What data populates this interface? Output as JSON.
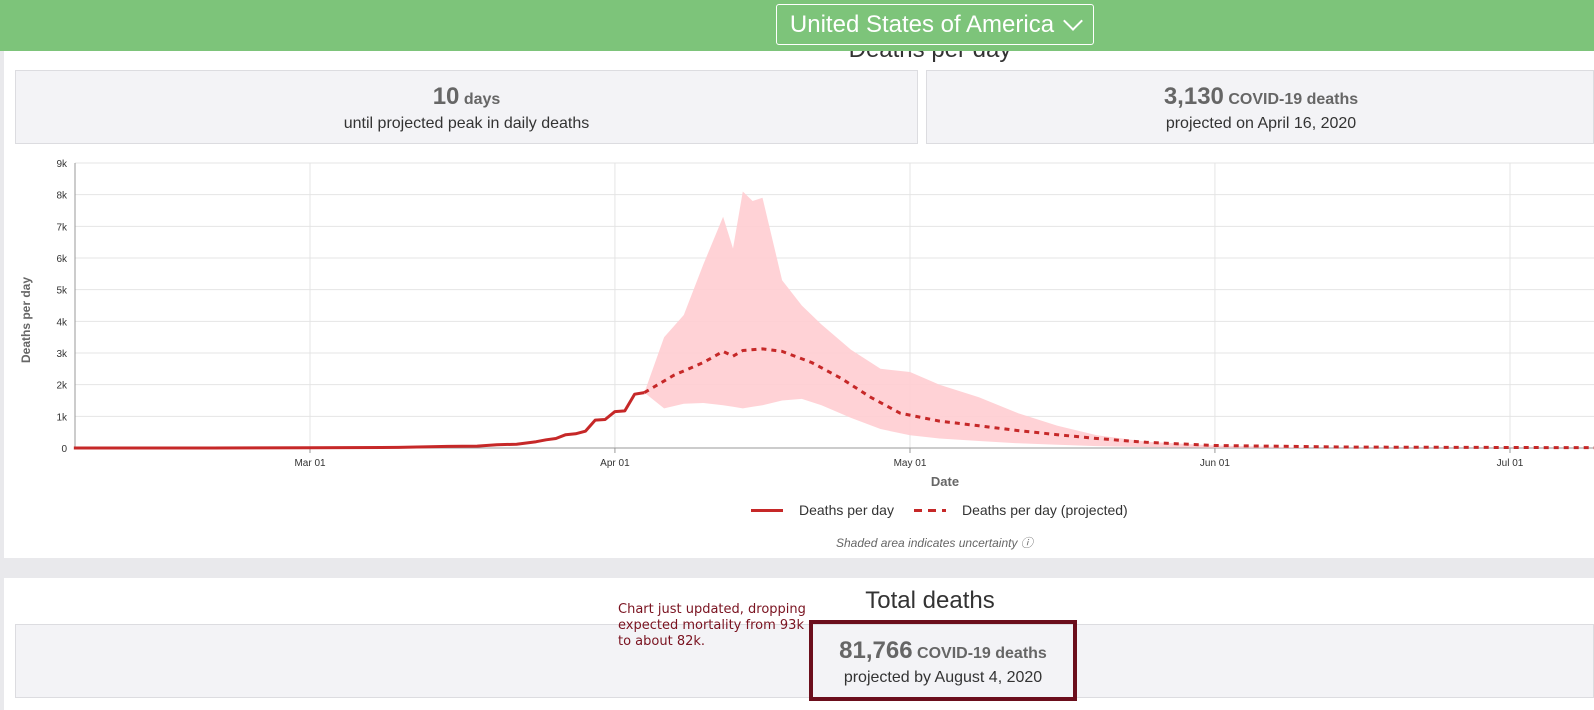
{
  "header": {
    "country": "United States of America"
  },
  "deaths_section": {
    "title": "Deaths per day",
    "peak_days": {
      "value": "10",
      "unit": "days",
      "sub": "until projected peak in daily deaths"
    },
    "peak_deaths": {
      "value": "3,130",
      "unit": "COVID-19 deaths",
      "sub": "projected on April 16, 2020"
    },
    "legend": {
      "actual": "Deaths per day",
      "projected": "Deaths per day (projected)"
    },
    "note": "Shaded area indicates uncertainty ⓘ"
  },
  "total_section": {
    "title": "Total deaths",
    "total": {
      "value": "81,766",
      "unit": "COVID-19 deaths",
      "sub": "projected by August 4, 2020"
    }
  },
  "annotation": "Chart just updated, dropping expected mortality from 93k to about 82k.",
  "colors": {
    "header": "#7dc47a",
    "line": "#c62828",
    "band": "#ffcdd2",
    "annotation": "#6b0e1c"
  },
  "chart_data": {
    "type": "line",
    "xlabel": "Date",
    "ylabel": "Deaths per day",
    "x_ticks": [
      "Mar 01",
      "Apr 01",
      "May 01",
      "Jun 01",
      "Jul 01"
    ],
    "y_ticks": [
      "0",
      "1k",
      "2k",
      "3k",
      "4k",
      "5k",
      "6k",
      "7k",
      "8k",
      "9k"
    ],
    "ylim": [
      0,
      9000
    ],
    "grid": true,
    "legend_position": "bottom",
    "series": [
      {
        "name": "Deaths per day",
        "style": "solid",
        "x": [
          "2020-02-06",
          "2020-02-20",
          "2020-03-01",
          "2020-03-10",
          "2020-03-15",
          "2020-03-18",
          "2020-03-20",
          "2020-03-22",
          "2020-03-24",
          "2020-03-25",
          "2020-03-26",
          "2020-03-27",
          "2020-03-28",
          "2020-03-29",
          "2020-03-30",
          "2020-03-31",
          "2020-04-01",
          "2020-04-02",
          "2020-04-03",
          "2020-04-04"
        ],
        "values": [
          0,
          0,
          5,
          20,
          50,
          60,
          100,
          120,
          200,
          260,
          300,
          420,
          450,
          530,
          880,
          900,
          1150,
          1170,
          1700,
          1750
        ]
      },
      {
        "name": "Deaths per day (projected)",
        "style": "dashed",
        "x": [
          "2020-04-04",
          "2020-04-07",
          "2020-04-10",
          "2020-04-12",
          "2020-04-13",
          "2020-04-14",
          "2020-04-16",
          "2020-04-18",
          "2020-04-21",
          "2020-04-24",
          "2020-04-27",
          "2020-04-30",
          "2020-05-04",
          "2020-05-08",
          "2020-05-12",
          "2020-05-16",
          "2020-05-20",
          "2020-05-25",
          "2020-06-01",
          "2020-06-15",
          "2020-07-10"
        ],
        "values": [
          1750,
          2300,
          2700,
          3050,
          2900,
          3080,
          3130,
          3050,
          2700,
          2200,
          1600,
          1100,
          850,
          700,
          550,
          420,
          300,
          180,
          80,
          30,
          10
        ]
      }
    ],
    "uncertainty_band": {
      "x": [
        "2020-04-04",
        "2020-04-06",
        "2020-04-08",
        "2020-04-10",
        "2020-04-12",
        "2020-04-13",
        "2020-04-14",
        "2020-04-15",
        "2020-04-16",
        "2020-04-18",
        "2020-04-20",
        "2020-04-22",
        "2020-04-25",
        "2020-04-28",
        "2020-05-01",
        "2020-05-04",
        "2020-05-08",
        "2020-05-12",
        "2020-05-16",
        "2020-05-20",
        "2020-05-25",
        "2020-06-01",
        "2020-06-10"
      ],
      "upper": [
        1750,
        3500,
        4200,
        5800,
        7300,
        6300,
        8100,
        7800,
        7900,
        5300,
        4500,
        3900,
        3100,
        2500,
        2400,
        2000,
        1600,
        1100,
        700,
        400,
        200,
        80,
        20
      ],
      "lower": [
        1750,
        1250,
        1400,
        1420,
        1350,
        1300,
        1250,
        1300,
        1350,
        1500,
        1550,
        1350,
        950,
        600,
        400,
        300,
        220,
        150,
        100,
        60,
        30,
        10,
        0
      ]
    }
  }
}
